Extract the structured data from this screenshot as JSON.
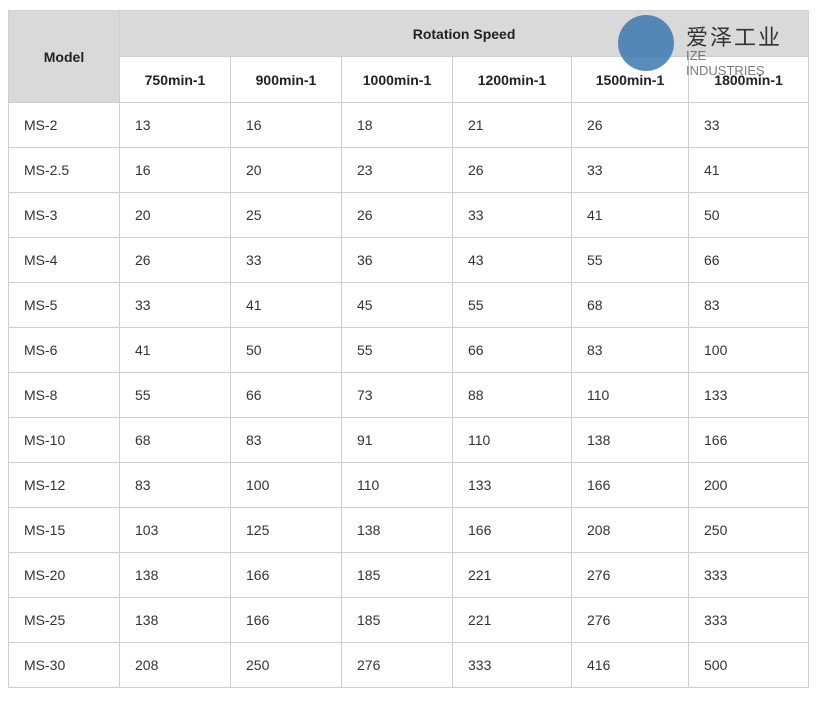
{
  "table": {
    "model_header": "Model",
    "group_header": "Rotation Speed",
    "speeds": [
      "750min-1",
      "900min-1",
      "1000min-1",
      "1200min-1",
      "1500min-1",
      "1800min-1"
    ],
    "rows": [
      [
        "MS-2",
        "13",
        "16",
        "18",
        "21",
        "26",
        "33"
      ],
      [
        "MS-2.5",
        "16",
        "20",
        "23",
        "26",
        "33",
        "41"
      ],
      [
        "MS-3",
        "20",
        "25",
        "26",
        "33",
        "41",
        "50"
      ],
      [
        "MS-4",
        "26",
        "33",
        "36",
        "43",
        "55",
        "66"
      ],
      [
        "MS-5",
        "33",
        "41",
        "45",
        "55",
        "68",
        "83"
      ],
      [
        "MS-6",
        "41",
        "50",
        "55",
        "66",
        "83",
        "100"
      ],
      [
        "MS-8",
        "55",
        "66",
        "73",
        "88",
        "110",
        "133"
      ],
      [
        "MS-10",
        "68",
        "83",
        "91",
        "110",
        "138",
        "166"
      ],
      [
        "MS-12",
        "83",
        "100",
        "110",
        "133",
        "166",
        "200"
      ],
      [
        "MS-15",
        "103",
        "125",
        "138",
        "166",
        "208",
        "250"
      ],
      [
        "MS-20",
        "138",
        "166",
        "185",
        "221",
        "276",
        "333"
      ],
      [
        "MS-25",
        "138",
        "166",
        "185",
        "221",
        "276",
        "333"
      ],
      [
        "MS-30",
        "208",
        "250",
        "276",
        "333",
        "416",
        "500"
      ]
    ]
  },
  "watermark": {
    "cn": "爱泽工业",
    "en": "IZE INDUSTRIES",
    "color": "#3c78af"
  }
}
